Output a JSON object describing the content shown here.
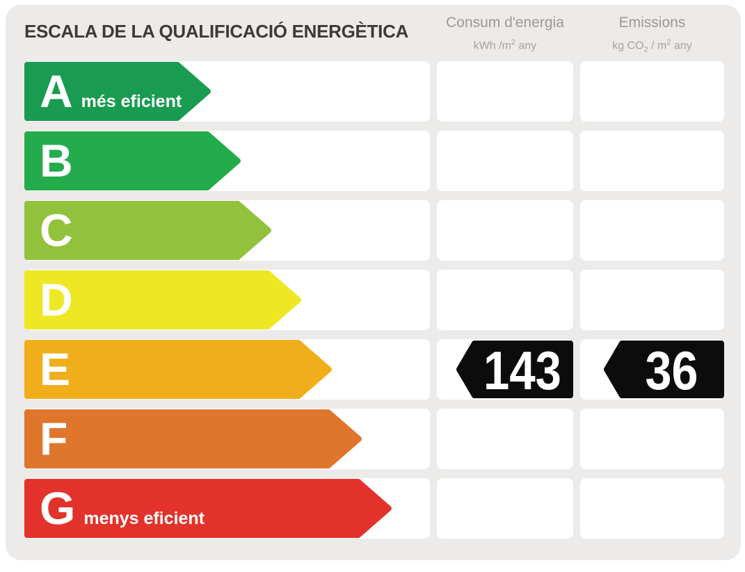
{
  "title": "ESCALA DE LA QUALIFICACIÓ ENERGÈTICA",
  "columns": {
    "consumption": {
      "title": "Consum d'energia",
      "unit_parts": [
        "kWh /m",
        "2",
        " any"
      ]
    },
    "emissions": {
      "title": "Emissions",
      "unit_parts": [
        "kg CO",
        "2",
        " / m",
        "2",
        " any"
      ]
    }
  },
  "ratings": [
    {
      "grade": "A",
      "label": "més eficient",
      "color": "#199B52",
      "tip": 303
    },
    {
      "grade": "B",
      "label": "",
      "color": "#24AC4C",
      "tip": 346
    },
    {
      "grade": "C",
      "label": "",
      "color": "#92C13B",
      "tip": 390
    },
    {
      "grade": "D",
      "label": "",
      "color": "#EDE823",
      "tip": 433
    },
    {
      "grade": "E",
      "label": "",
      "color": "#F0AE1B",
      "tip": 477
    },
    {
      "grade": "F",
      "label": "",
      "color": "#E0752C",
      "tip": 520
    },
    {
      "grade": "G",
      "label": "menys eficient",
      "color": "#E3322B",
      "tip": 563
    }
  ],
  "current_rating": {
    "grade": "E",
    "consumption": "143",
    "emissions": "36"
  },
  "tag_color": "#0C0C0C",
  "panel_background": "#ECEBE9",
  "chart_data": {
    "type": "bar",
    "orientation": "horizontal",
    "title": "ESCALA DE LA QUALIFICACIÓ ENERGÈTICA",
    "categories": [
      "A",
      "B",
      "C",
      "D",
      "E",
      "F",
      "G"
    ],
    "category_labels": [
      "més eficient",
      "",
      "",
      "",
      "",
      "",
      "menys eficient"
    ],
    "bar_lengths_relative": [
      1.0,
      1.16,
      1.32,
      1.49,
      1.65,
      1.81,
      1.97
    ],
    "bar_colors": [
      "#199B52",
      "#24AC4C",
      "#92C13B",
      "#EDE823",
      "#F0AE1B",
      "#E0752C",
      "#E3322B"
    ],
    "value_columns": [
      {
        "name": "Consum d'energia",
        "unit": "kWh /m2 any"
      },
      {
        "name": "Emissions",
        "unit": "kg CO2 / m2 any"
      }
    ],
    "annotations": [
      {
        "category": "E",
        "consum_denergia": 143,
        "emissions": 36
      }
    ],
    "legend_position": "none",
    "grid": false
  }
}
